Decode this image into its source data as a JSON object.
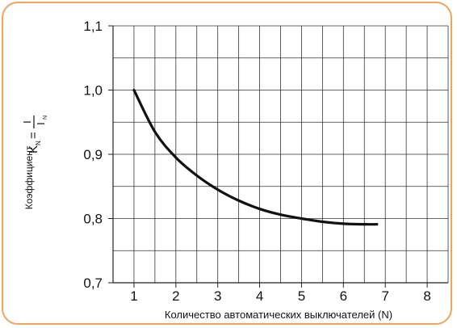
{
  "colors": {
    "frame": "#f3a45a",
    "grid": "#333333",
    "curve": "#111111"
  },
  "chart_data": {
    "type": "line",
    "x": [
      1,
      1.5,
      2,
      2.5,
      3,
      3.5,
      4,
      4.5,
      5,
      5.5,
      6,
      6.5,
      6.8
    ],
    "series": [
      {
        "values": [
          1.0,
          0.935,
          0.895,
          0.867,
          0.845,
          0.828,
          0.815,
          0.806,
          0.8,
          0.795,
          0.792,
          0.791,
          0.791
        ]
      }
    ],
    "xlim": [
      0.5,
      8.5
    ],
    "ylim": [
      0.7,
      1.1
    ],
    "xticks": [
      1,
      2,
      3,
      4,
      5,
      6,
      7,
      8
    ],
    "yticks": [
      0.7,
      0.8,
      0.9,
      1.0,
      1.1
    ],
    "xtick_labels": [
      "1",
      "2",
      "3",
      "4",
      "5",
      "6",
      "7",
      "8"
    ],
    "ytick_labels": [
      "0,7",
      "0,8",
      "0,9",
      "1,0",
      "1,1"
    ],
    "xlabel": "Количество автоматических выключателей (N)",
    "ylabel": "Коэффициент",
    "ylabel_formula": {
      "lhs": "K",
      "lhs_sub": "N",
      "eq": "=",
      "num": "I",
      "den": "I",
      "den_sub": "N"
    },
    "grid": true
  }
}
